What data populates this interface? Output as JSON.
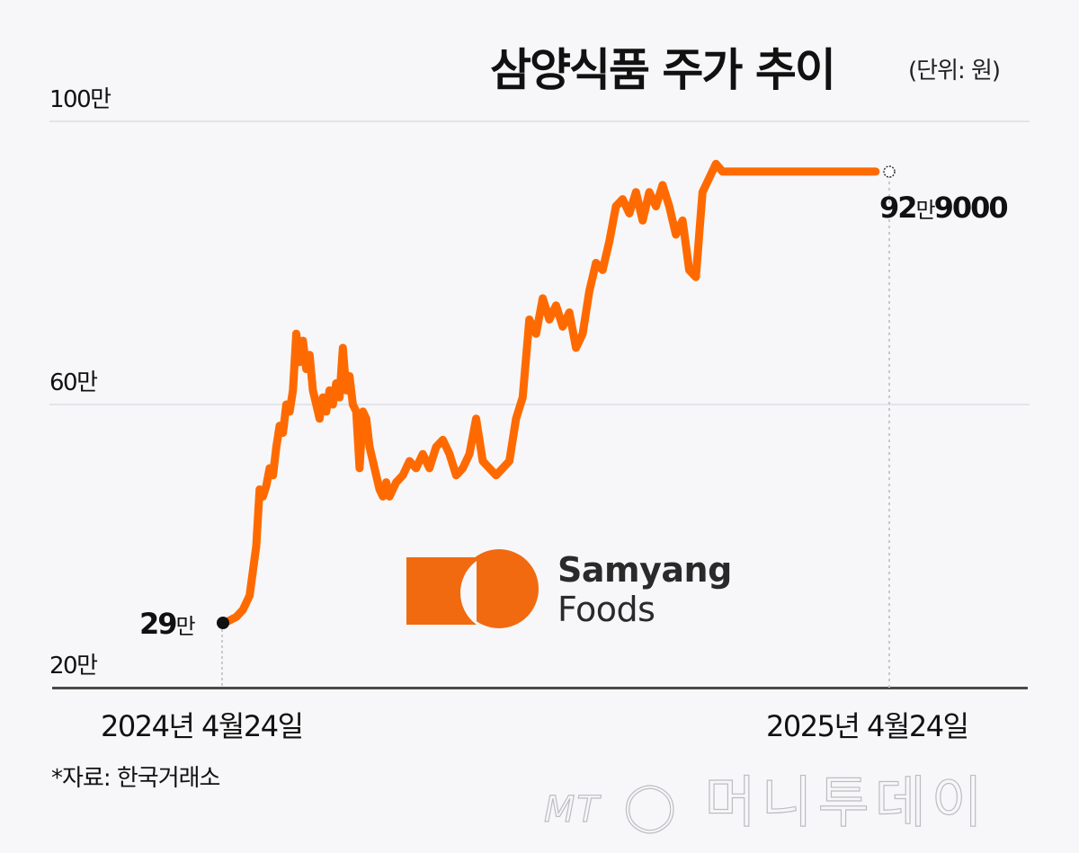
{
  "header": {
    "title": "삼양식품 주가 추이",
    "unit": "(단위: 원)"
  },
  "axis": {
    "y_ticks": [
      {
        "label": "100만",
        "value": 1000000
      },
      {
        "label": "60만",
        "value": 600000
      },
      {
        "label": "20만",
        "value": 200000
      }
    ],
    "x_start_label": "2024년 4월24일",
    "x_end_label": "2025년 4월24일"
  },
  "annotations": {
    "start_value_num": "29",
    "start_value_unit": "만",
    "end_value_num1": "92",
    "end_value_unit": "만",
    "end_value_num2": "9000"
  },
  "source": "*자료: 한국거래소",
  "logo": {
    "line1": "Samyang",
    "line2": "Foods",
    "color": "#f26a0f"
  },
  "watermark": {
    "mt": "MT",
    "text": "머니투데이"
  },
  "colors": {
    "line": "#ff6a00",
    "grid": "#e4e4e8",
    "background": "#f7f7f9"
  },
  "chart_data": {
    "type": "line",
    "title": "삼양식품 주가 추이",
    "subtitle": "(단위: 원)",
    "xlabel": "",
    "ylabel": "",
    "ylim": [
      200000,
      1000000
    ],
    "y_ticks": [
      200000,
      600000,
      1000000
    ],
    "y_tick_labels": [
      "20만",
      "60만",
      "100만"
    ],
    "x_range": [
      "2024-04-24",
      "2025-04-24"
    ],
    "grid": true,
    "legend": "none",
    "source": "한국거래소",
    "start": {
      "date": "2024-04-24",
      "value": 290000,
      "label": "29만"
    },
    "end": {
      "date": "2025-04-24",
      "value": 929000,
      "label": "92만9000"
    },
    "series": [
      {
        "name": "삼양식품 주가",
        "x_frac": [
          0,
          0.01,
          0.02,
          0.03,
          0.04,
          0.05,
          0.055,
          0.06,
          0.065,
          0.07,
          0.075,
          0.08,
          0.085,
          0.09,
          0.095,
          0.1,
          0.105,
          0.11,
          0.115,
          0.12,
          0.125,
          0.13,
          0.135,
          0.14,
          0.145,
          0.15,
          0.155,
          0.16,
          0.165,
          0.17,
          0.175,
          0.18,
          0.185,
          0.19,
          0.195,
          0.2,
          0.205,
          0.21,
          0.215,
          0.22,
          0.225,
          0.23,
          0.235,
          0.24,
          0.245,
          0.25,
          0.26,
          0.27,
          0.28,
          0.29,
          0.3,
          0.31,
          0.32,
          0.33,
          0.34,
          0.35,
          0.36,
          0.37,
          0.38,
          0.39,
          0.4,
          0.41,
          0.42,
          0.43,
          0.44,
          0.45,
          0.46,
          0.47,
          0.48,
          0.49,
          0.5,
          0.51,
          0.52,
          0.53,
          0.54,
          0.55,
          0.56,
          0.57,
          0.58,
          0.59,
          0.6,
          0.61,
          0.62,
          0.63,
          0.64,
          0.65,
          0.66,
          0.67,
          0.68,
          0.69,
          0.7,
          0.71,
          0.72,
          0.73,
          0.74,
          0.75,
          0.76,
          0.77,
          0.78,
          0.79,
          0.8,
          0.81,
          0.82,
          0.83,
          0.84,
          0.85,
          0.86,
          0.87,
          0.88,
          0.89,
          0.9,
          0.91,
          0.92,
          0.93,
          0.94,
          0.95,
          0.96,
          0.97,
          0.98,
          0.99,
          1.0
        ],
        "values": [
          290000,
          295000,
          300000,
          310000,
          330000,
          400000,
          480000,
          470000,
          485000,
          510000,
          500000,
          540000,
          570000,
          560000,
          600000,
          590000,
          620000,
          700000,
          660000,
          690000,
          650000,
          670000,
          620000,
          600000,
          580000,
          610000,
          590000,
          620000,
          600000,
          630000,
          610000,
          680000,
          620000,
          640000,
          600000,
          590000,
          510000,
          590000,
          580000,
          540000,
          520000,
          500000,
          480000,
          470000,
          490000,
          470000,
          490000,
          500000,
          520000,
          510000,
          530000,
          510000,
          540000,
          550000,
          530000,
          500000,
          510000,
          530000,
          580000,
          520000,
          510000,
          500000,
          510000,
          520000,
          580000,
          610000,
          720000,
          700000,
          750000,
          720000,
          740000,
          710000,
          730000,
          680000,
          700000,
          760000,
          800000,
          790000,
          830000,
          880000,
          890000,
          870000,
          900000,
          860000,
          900000,
          880000,
          910000,
          880000,
          840000,
          860000,
          790000,
          780000,
          900000,
          920000,
          940000,
          929000,
          929000,
          929000,
          929000,
          929000,
          929000,
          929000,
          929000,
          929000,
          929000,
          929000,
          929000,
          929000,
          929000,
          929000,
          929000,
          929000,
          929000,
          929000,
          929000,
          929000,
          929000,
          929000,
          929000,
          929000,
          929000
        ]
      }
    ]
  }
}
